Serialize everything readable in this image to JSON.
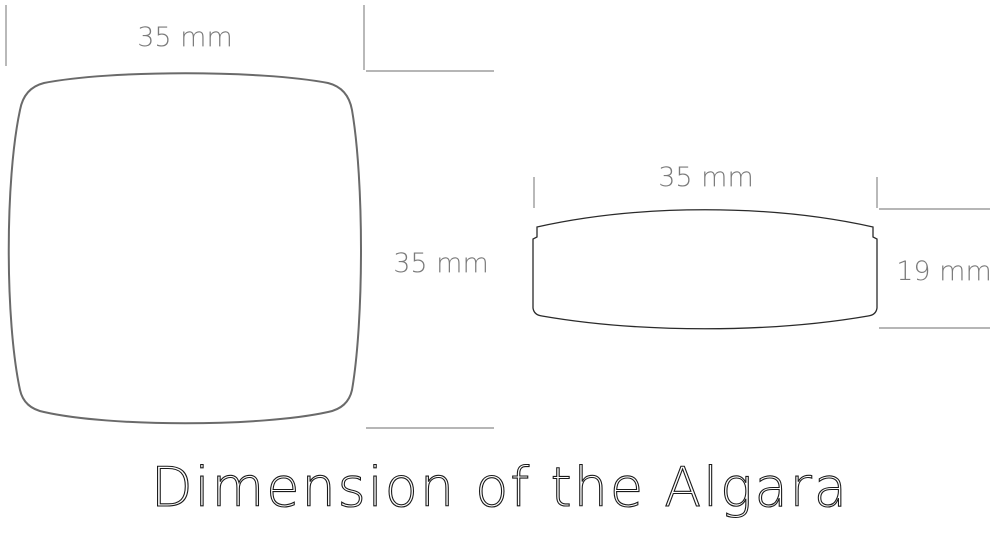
{
  "title": "Dimension of the Algara",
  "top_view": {
    "width_label": "35 mm",
    "height_label": "35 mm"
  },
  "side_view": {
    "width_label": "35 mm",
    "height_label": "19 mm"
  }
}
